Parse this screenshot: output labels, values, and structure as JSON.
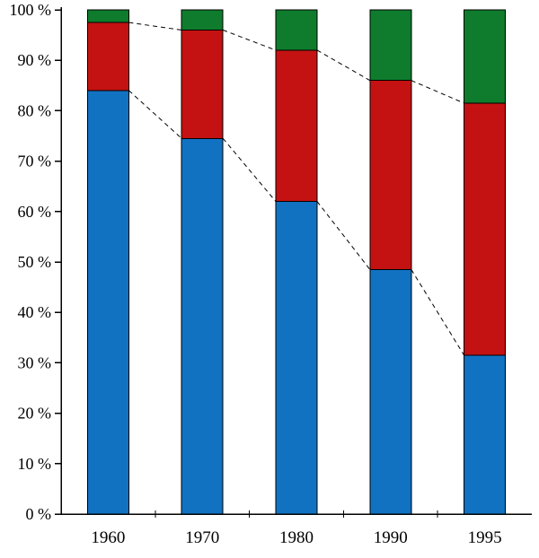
{
  "chart_data": {
    "type": "bar",
    "stacked": true,
    "percent_stacked": true,
    "title": "",
    "xlabel": "",
    "ylabel": "",
    "categories": [
      "1960",
      "1970",
      "1980",
      "1990",
      "1995"
    ],
    "series": [
      {
        "name": "blue-bottom-segment",
        "color": "#1272C2",
        "values": [
          84.0,
          74.5,
          62.0,
          48.5,
          31.5
        ]
      },
      {
        "name": "red-middle-segment",
        "color": "#C41212",
        "values": [
          13.5,
          21.5,
          30.0,
          37.5,
          50.0
        ]
      },
      {
        "name": "green-top-segment",
        "color": "#0E7C2C",
        "values": [
          2.5,
          4.0,
          8.0,
          14.0,
          18.5
        ]
      }
    ],
    "ylim": [
      0,
      100
    ],
    "ytick_labels": [
      "0 %",
      "10 %",
      "20 %",
      "30 %",
      "40 %",
      "50 %",
      "60 %",
      "70 %",
      "80 %",
      "90 %",
      "100 %"
    ],
    "connectors": true,
    "connector_style": "dashed",
    "grid": false,
    "legend": false,
    "axis_color": "#000000",
    "bar_outline_color": "#000000"
  }
}
